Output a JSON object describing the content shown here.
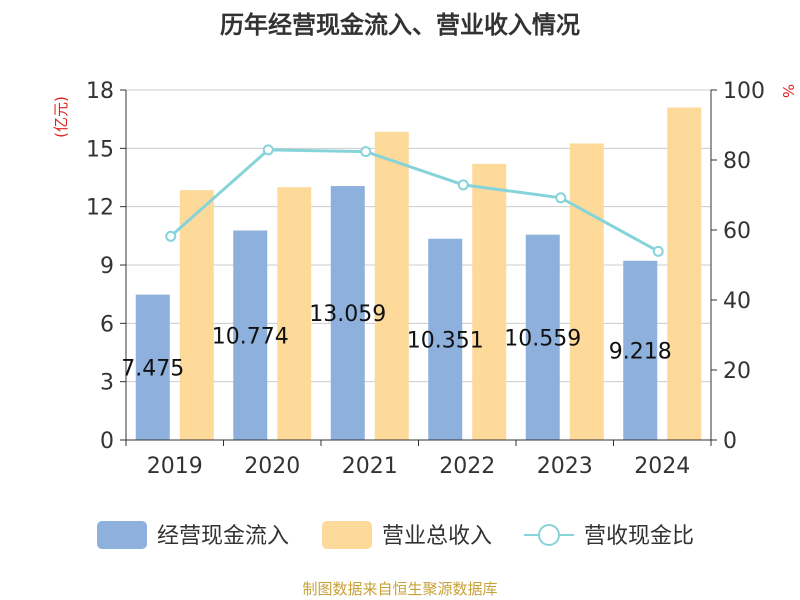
{
  "chart_data": {
    "type": "bar",
    "title": "历年经营现金流入、营业收入情况",
    "y_left_unit": "(亿元)",
    "y_right_unit": "%",
    "categories": [
      "2019",
      "2020",
      "2021",
      "2022",
      "2023",
      "2024"
    ],
    "y_left_ticks": [
      "0",
      "3",
      "6",
      "9",
      "12",
      "15",
      "18"
    ],
    "y_right_ticks": [
      "0",
      "20",
      "40",
      "60",
      "80",
      "100"
    ],
    "ylim_left": [
      0,
      18
    ],
    "ylim_right": [
      0,
      100
    ],
    "grid": true,
    "legend_position": "bottom",
    "series": [
      {
        "name": "经营现金流入",
        "type": "bar",
        "axis": "left",
        "color": "#8eb0dc",
        "values": [
          7.475,
          10.774,
          13.059,
          10.351,
          10.559,
          9.218
        ],
        "data_labels": [
          "7.475",
          "10.774",
          "13.059",
          "10.351",
          "10.559",
          "9.218"
        ]
      },
      {
        "name": "营业总收入",
        "type": "bar",
        "axis": "left",
        "color": "#fdd99a",
        "values": [
          12.85,
          13.0,
          15.85,
          14.2,
          15.25,
          17.1
        ]
      },
      {
        "name": "营收现金比",
        "type": "line",
        "axis": "right",
        "color": "#86d4d9",
        "values": [
          58.2,
          82.9,
          82.4,
          72.9,
          69.2,
          53.9
        ]
      }
    ],
    "source": "制图数据来自恒生聚源数据库"
  },
  "colors": {
    "title": "#333333",
    "axis_unit": "#e0211f",
    "source": "#c7a239",
    "grid": "#cccccc"
  }
}
